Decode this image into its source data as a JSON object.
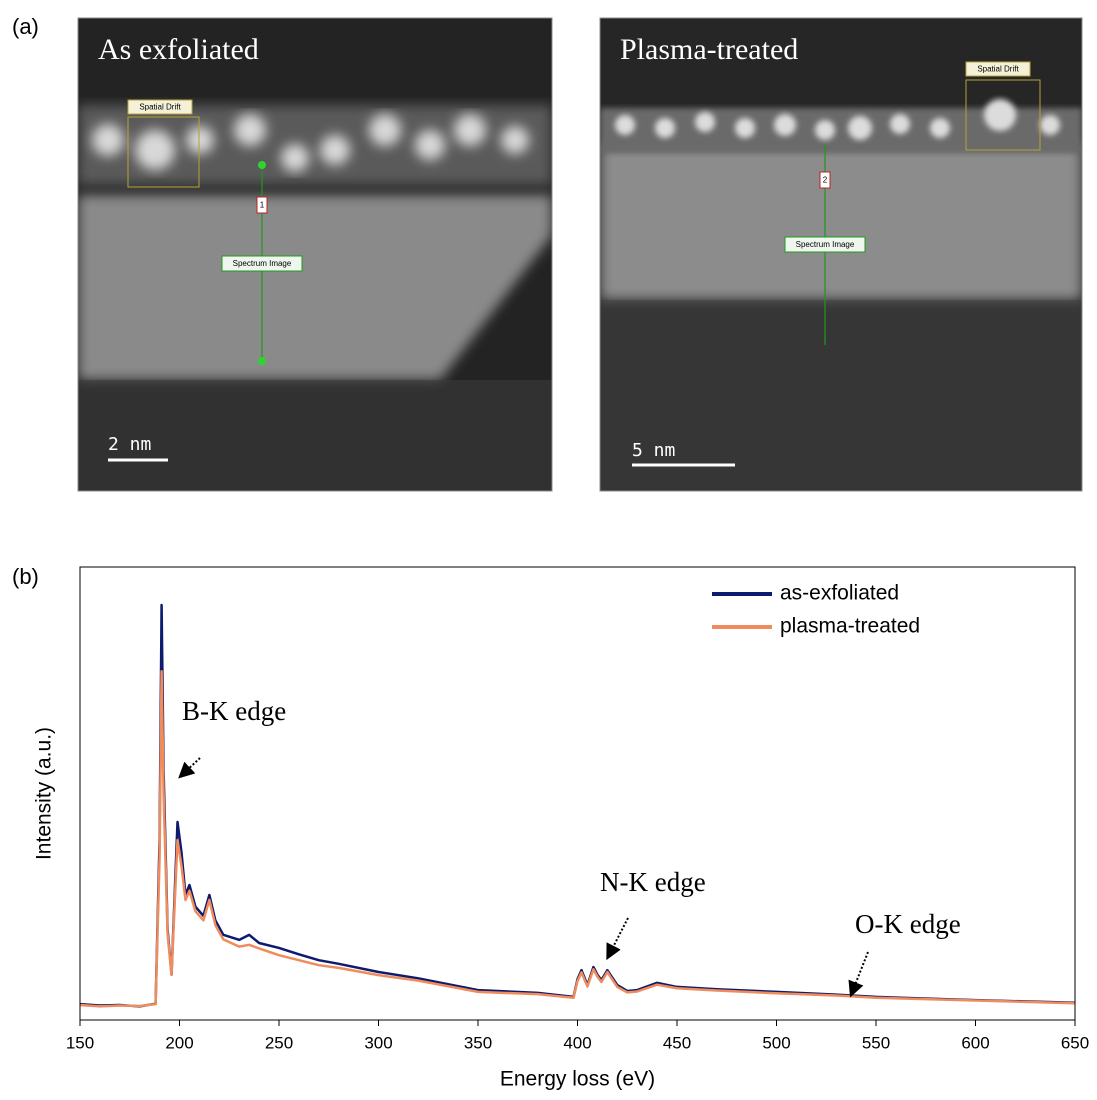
{
  "panel_a": {
    "label": "(a)",
    "images": [
      {
        "title": "As exfoliated",
        "drift_label": "Spatial Drift",
        "spectrum_label": "Spectrum Image",
        "marker": "1",
        "scale_bar": "2 nm"
      },
      {
        "title": "Plasma-treated",
        "drift_label": "Spatial Drift",
        "spectrum_label": "Spectrum Image",
        "marker": "2",
        "scale_bar": "5 nm"
      }
    ]
  },
  "chart_data": {
    "type": "line",
    "panel_label": "(b)",
    "xlabel": "Energy loss (eV)",
    "ylabel": "Intensity (a.u.)",
    "x": [
      150,
      160,
      170,
      180,
      188,
      190,
      191,
      192,
      194,
      196,
      199,
      201,
      203,
      205,
      208,
      212,
      215,
      218,
      222,
      230,
      235,
      240,
      250,
      260,
      270,
      280,
      300,
      320,
      350,
      380,
      398,
      400,
      402,
      405,
      408,
      410,
      412,
      415,
      418,
      420,
      425,
      430,
      440,
      450,
      470,
      500,
      530,
      550,
      600,
      650
    ],
    "series": [
      {
        "name": "as-exfoliated",
        "color": "#0d1a6e",
        "values": [
          3.5,
          3.2,
          3.3,
          3.0,
          3.6,
          40,
          91.6,
          55,
          20,
          10,
          43.7,
          37,
          27.6,
          29.8,
          25,
          23,
          27.6,
          22,
          18.8,
          17.7,
          18.8,
          17,
          15.9,
          14.5,
          13.2,
          12.4,
          10.6,
          9.2,
          6.6,
          6.0,
          5.1,
          9,
          11,
          7.7,
          11.7,
          10,
          8.8,
          11,
          9,
          7.7,
          6.4,
          6.6,
          8.2,
          7.3,
          6.8,
          6.2,
          5.6,
          5.1,
          4.4,
          3.8
        ]
      },
      {
        "name": "plasma-treated",
        "color": "#f08b5b",
        "values": [
          3.3,
          3.0,
          3.2,
          3.1,
          3.5,
          36,
          77,
          50,
          19,
          10,
          39.7,
          34,
          26.5,
          28.5,
          24,
          22,
          26.5,
          21,
          17.8,
          16.2,
          16.6,
          15.8,
          14.3,
          13.2,
          12.1,
          11.5,
          9.9,
          8.7,
          6.2,
          5.7,
          4.9,
          8.6,
          10.5,
          7.4,
          11.2,
          9.6,
          8.4,
          10.6,
          8.6,
          7.3,
          6.1,
          6.3,
          7.8,
          7.0,
          6.5,
          5.9,
          5.4,
          4.9,
          4.3,
          3.7
        ]
      }
    ],
    "xlim": [
      150,
      650
    ],
    "xticks": [
      150,
      200,
      250,
      300,
      350,
      400,
      450,
      500,
      550,
      600,
      650
    ],
    "ylim": [
      0,
      100
    ],
    "legend": "upper right",
    "annotations": [
      "B-K edge",
      "N-K edge",
      "O-K edge"
    ]
  }
}
